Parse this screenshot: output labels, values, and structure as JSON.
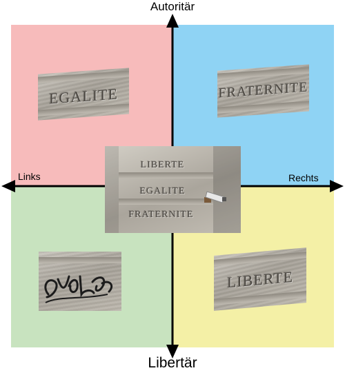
{
  "labels": {
    "top": "Autoritär",
    "bottom": "Libertär",
    "left": "Links",
    "right": "Rechts"
  },
  "quadrants": {
    "top_left": {
      "color": "#f7bbbb",
      "photo_text": "EGALITE"
    },
    "top_right": {
      "color": "#8fd3f4",
      "photo_text": "FRATERNITE"
    },
    "bottom_left": {
      "color": "#c8e3bf",
      "photo_text": ""
    },
    "bottom_right": {
      "color": "#f4f0a6",
      "photo_text": "LIBERTE"
    }
  },
  "center_photo": {
    "lines": [
      "LIBERTE",
      "EGALITE",
      "FRATERNITE"
    ]
  },
  "colors": {
    "axis": "#000000",
    "stone": "#a7a299"
  }
}
